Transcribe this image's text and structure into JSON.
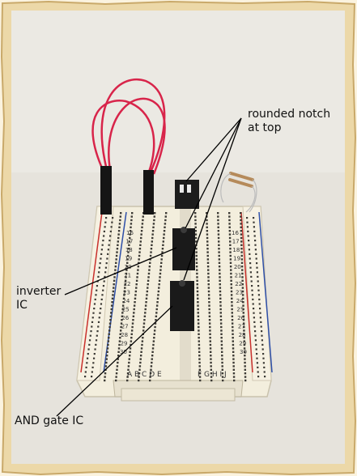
{
  "annotations": {
    "notch_line1": "rounded notch",
    "notch_line2": "at top",
    "inverter_line1": "inverter",
    "inverter_line2": "IC",
    "and_gate": "AND gate IC"
  },
  "breadboard": {
    "left_columns": "A B C D E",
    "right_columns": "F G H I J",
    "row_numbers": [
      "16",
      "17",
      "18",
      "19",
      "20",
      "21",
      "22",
      "23",
      "24",
      "25",
      "26",
      "27",
      "28",
      "29",
      "30"
    ]
  },
  "colors": {
    "photo_background": "#e6e3dc",
    "board": "#f1ebd9",
    "wire": "#d8244a",
    "chip": "#1a1a1a",
    "rail_red": "#c9302c",
    "rail_blue": "#2e4fa8",
    "frame": "#e9d4a3"
  }
}
